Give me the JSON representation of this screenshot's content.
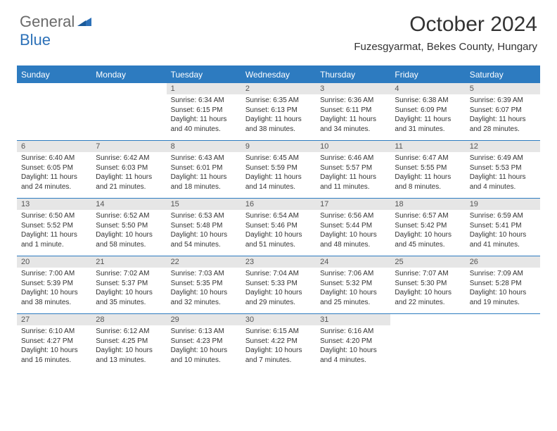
{
  "logo": {
    "textGeneral": "General",
    "textBlue": "Blue"
  },
  "title": "October 2024",
  "location": "Fuzesgyarmat, Bekes County, Hungary",
  "colors": {
    "headerBg": "#2d7bc0",
    "headerText": "#ffffff",
    "dayNumBg": "#e6e6e6",
    "dayNumText": "#555555",
    "bodyText": "#333333",
    "border": "#2d7bc0",
    "logoGray": "#6a6a6a",
    "logoBlue": "#2d71b8"
  },
  "dayHeaders": [
    "Sunday",
    "Monday",
    "Tuesday",
    "Wednesday",
    "Thursday",
    "Friday",
    "Saturday"
  ],
  "weeks": [
    [
      null,
      null,
      {
        "n": "1",
        "l1": "Sunrise: 6:34 AM",
        "l2": "Sunset: 6:15 PM",
        "l3": "Daylight: 11 hours",
        "l4": "and 40 minutes."
      },
      {
        "n": "2",
        "l1": "Sunrise: 6:35 AM",
        "l2": "Sunset: 6:13 PM",
        "l3": "Daylight: 11 hours",
        "l4": "and 38 minutes."
      },
      {
        "n": "3",
        "l1": "Sunrise: 6:36 AM",
        "l2": "Sunset: 6:11 PM",
        "l3": "Daylight: 11 hours",
        "l4": "and 34 minutes."
      },
      {
        "n": "4",
        "l1": "Sunrise: 6:38 AM",
        "l2": "Sunset: 6:09 PM",
        "l3": "Daylight: 11 hours",
        "l4": "and 31 minutes."
      },
      {
        "n": "5",
        "l1": "Sunrise: 6:39 AM",
        "l2": "Sunset: 6:07 PM",
        "l3": "Daylight: 11 hours",
        "l4": "and 28 minutes."
      }
    ],
    [
      {
        "n": "6",
        "l1": "Sunrise: 6:40 AM",
        "l2": "Sunset: 6:05 PM",
        "l3": "Daylight: 11 hours",
        "l4": "and 24 minutes."
      },
      {
        "n": "7",
        "l1": "Sunrise: 6:42 AM",
        "l2": "Sunset: 6:03 PM",
        "l3": "Daylight: 11 hours",
        "l4": "and 21 minutes."
      },
      {
        "n": "8",
        "l1": "Sunrise: 6:43 AM",
        "l2": "Sunset: 6:01 PM",
        "l3": "Daylight: 11 hours",
        "l4": "and 18 minutes."
      },
      {
        "n": "9",
        "l1": "Sunrise: 6:45 AM",
        "l2": "Sunset: 5:59 PM",
        "l3": "Daylight: 11 hours",
        "l4": "and 14 minutes."
      },
      {
        "n": "10",
        "l1": "Sunrise: 6:46 AM",
        "l2": "Sunset: 5:57 PM",
        "l3": "Daylight: 11 hours",
        "l4": "and 11 minutes."
      },
      {
        "n": "11",
        "l1": "Sunrise: 6:47 AM",
        "l2": "Sunset: 5:55 PM",
        "l3": "Daylight: 11 hours",
        "l4": "and 8 minutes."
      },
      {
        "n": "12",
        "l1": "Sunrise: 6:49 AM",
        "l2": "Sunset: 5:53 PM",
        "l3": "Daylight: 11 hours",
        "l4": "and 4 minutes."
      }
    ],
    [
      {
        "n": "13",
        "l1": "Sunrise: 6:50 AM",
        "l2": "Sunset: 5:52 PM",
        "l3": "Daylight: 11 hours",
        "l4": "and 1 minute."
      },
      {
        "n": "14",
        "l1": "Sunrise: 6:52 AM",
        "l2": "Sunset: 5:50 PM",
        "l3": "Daylight: 10 hours",
        "l4": "and 58 minutes."
      },
      {
        "n": "15",
        "l1": "Sunrise: 6:53 AM",
        "l2": "Sunset: 5:48 PM",
        "l3": "Daylight: 10 hours",
        "l4": "and 54 minutes."
      },
      {
        "n": "16",
        "l1": "Sunrise: 6:54 AM",
        "l2": "Sunset: 5:46 PM",
        "l3": "Daylight: 10 hours",
        "l4": "and 51 minutes."
      },
      {
        "n": "17",
        "l1": "Sunrise: 6:56 AM",
        "l2": "Sunset: 5:44 PM",
        "l3": "Daylight: 10 hours",
        "l4": "and 48 minutes."
      },
      {
        "n": "18",
        "l1": "Sunrise: 6:57 AM",
        "l2": "Sunset: 5:42 PM",
        "l3": "Daylight: 10 hours",
        "l4": "and 45 minutes."
      },
      {
        "n": "19",
        "l1": "Sunrise: 6:59 AM",
        "l2": "Sunset: 5:41 PM",
        "l3": "Daylight: 10 hours",
        "l4": "and 41 minutes."
      }
    ],
    [
      {
        "n": "20",
        "l1": "Sunrise: 7:00 AM",
        "l2": "Sunset: 5:39 PM",
        "l3": "Daylight: 10 hours",
        "l4": "and 38 minutes."
      },
      {
        "n": "21",
        "l1": "Sunrise: 7:02 AM",
        "l2": "Sunset: 5:37 PM",
        "l3": "Daylight: 10 hours",
        "l4": "and 35 minutes."
      },
      {
        "n": "22",
        "l1": "Sunrise: 7:03 AM",
        "l2": "Sunset: 5:35 PM",
        "l3": "Daylight: 10 hours",
        "l4": "and 32 minutes."
      },
      {
        "n": "23",
        "l1": "Sunrise: 7:04 AM",
        "l2": "Sunset: 5:33 PM",
        "l3": "Daylight: 10 hours",
        "l4": "and 29 minutes."
      },
      {
        "n": "24",
        "l1": "Sunrise: 7:06 AM",
        "l2": "Sunset: 5:32 PM",
        "l3": "Daylight: 10 hours",
        "l4": "and 25 minutes."
      },
      {
        "n": "25",
        "l1": "Sunrise: 7:07 AM",
        "l2": "Sunset: 5:30 PM",
        "l3": "Daylight: 10 hours",
        "l4": "and 22 minutes."
      },
      {
        "n": "26",
        "l1": "Sunrise: 7:09 AM",
        "l2": "Sunset: 5:28 PM",
        "l3": "Daylight: 10 hours",
        "l4": "and 19 minutes."
      }
    ],
    [
      {
        "n": "27",
        "l1": "Sunrise: 6:10 AM",
        "l2": "Sunset: 4:27 PM",
        "l3": "Daylight: 10 hours",
        "l4": "and 16 minutes."
      },
      {
        "n": "28",
        "l1": "Sunrise: 6:12 AM",
        "l2": "Sunset: 4:25 PM",
        "l3": "Daylight: 10 hours",
        "l4": "and 13 minutes."
      },
      {
        "n": "29",
        "l1": "Sunrise: 6:13 AM",
        "l2": "Sunset: 4:23 PM",
        "l3": "Daylight: 10 hours",
        "l4": "and 10 minutes."
      },
      {
        "n": "30",
        "l1": "Sunrise: 6:15 AM",
        "l2": "Sunset: 4:22 PM",
        "l3": "Daylight: 10 hours",
        "l4": "and 7 minutes."
      },
      {
        "n": "31",
        "l1": "Sunrise: 6:16 AM",
        "l2": "Sunset: 4:20 PM",
        "l3": "Daylight: 10 hours",
        "l4": "and 4 minutes."
      },
      null,
      null
    ]
  ]
}
